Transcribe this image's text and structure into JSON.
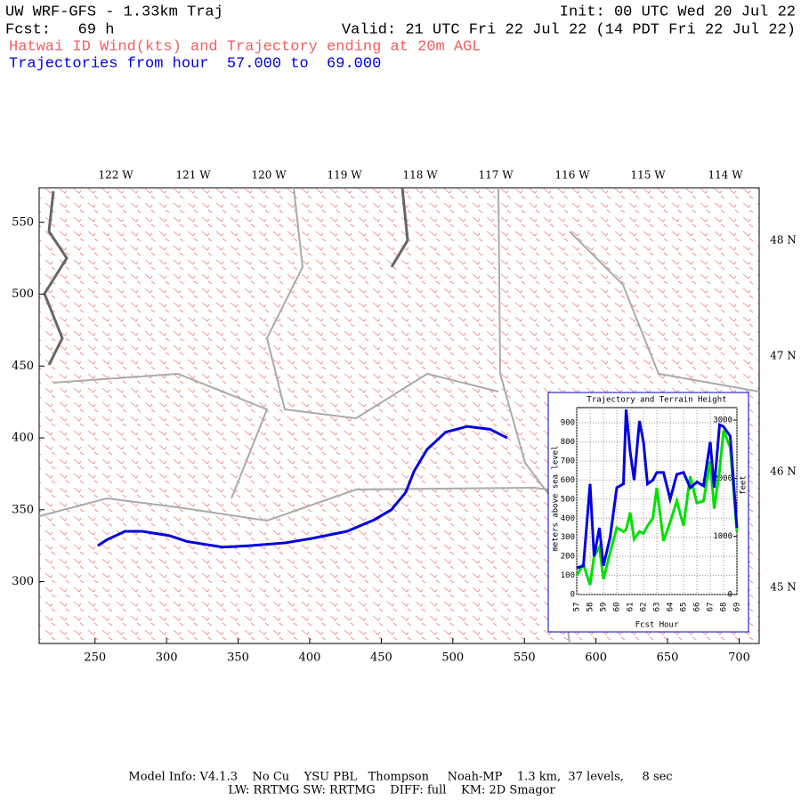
{
  "header": {
    "title": "UW WRF-GFS - 1.33km Traj",
    "init": "Init: 00 UTC Wed 20 Jul 22",
    "fcst": "Fcst:   69 h",
    "valid": "Valid: 21 UTC Fri 22 Jul 22 (14 PDT Fri 22 Jul 22)",
    "subtitle": "Hatwai ID Wind(kts) and Trajectory ending at 20m AGL",
    "trajectory_range": "Trajectories from hour  57.000 to  69.000"
  },
  "map": {
    "xlim": [
      211,
      714
    ],
    "ylim": [
      257,
      574
    ],
    "xticks": [
      250,
      300,
      350,
      400,
      450,
      500,
      550,
      600,
      650,
      700
    ],
    "yticks": [
      300,
      350,
      400,
      450,
      500,
      550
    ],
    "lon_labels": [
      "122 W",
      "121 W",
      "120 W",
      "119 W",
      "118 W",
      "117 W",
      "116 W",
      "115 W",
      "114 W"
    ],
    "lat_labels": [
      "48 N",
      "47 N",
      "46 N",
      "45 N"
    ],
    "trajectory": {
      "color": "#0000e0",
      "x": [
        252,
        258,
        271,
        283,
        302,
        314,
        339,
        358,
        383,
        401,
        426,
        445,
        457,
        467,
        473,
        482,
        495,
        510,
        526,
        538
      ],
      "y": [
        325,
        329,
        335,
        335,
        332,
        328,
        324,
        325,
        327,
        330,
        335,
        343,
        350,
        362,
        377,
        392,
        404,
        408,
        406,
        400
      ]
    }
  },
  "chart_data": {
    "type": "line",
    "title": "Trajectory and Terrain Height",
    "x_label": "Fcst Hour",
    "y_label": "meters above sea level",
    "y2_label": "feet",
    "x": [
      57,
      57.5,
      58,
      58.3,
      58.7,
      59,
      59.5,
      60,
      60.5,
      60.7,
      61,
      61.3,
      61.7,
      62,
      62.3,
      62.7,
      63,
      63.5,
      64,
      64.5,
      65,
      65.5,
      66,
      66.5,
      67,
      67.3,
      67.7,
      68,
      68.5,
      69
    ],
    "xlim": [
      57,
      69
    ],
    "xticks": [
      57,
      58,
      59,
      60,
      61,
      62,
      63,
      64,
      65,
      66,
      67,
      68,
      69
    ],
    "ylim": [
      0,
      980
    ],
    "yticks": [
      0,
      100,
      200,
      300,
      400,
      500,
      600,
      700,
      800,
      900
    ],
    "y2lim": [
      0,
      3215
    ],
    "y2ticks": [
      0,
      1000,
      2000,
      3000
    ],
    "grid": true,
    "series": [
      {
        "name": "Trajectory",
        "color": "#0000e0",
        "values": [
          140,
          150,
          580,
          200,
          350,
          150,
          300,
          560,
          580,
          970,
          750,
          600,
          910,
          800,
          580,
          600,
          640,
          640,
          500,
          630,
          640,
          560,
          590,
          570,
          800,
          560,
          890,
          880,
          830,
          350
        ]
      },
      {
        "name": "Terrain",
        "color": "#00e000",
        "values": [
          100,
          160,
          50,
          200,
          250,
          80,
          220,
          350,
          330,
          340,
          430,
          290,
          330,
          320,
          360,
          400,
          560,
          280,
          380,
          490,
          360,
          620,
          480,
          490,
          700,
          450,
          650,
          860,
          770,
          330
        ]
      }
    ]
  },
  "footer": {
    "line1": "Model Info: V4.1.3    No Cu    YSU PBL   Thompson     Noah-MP    1.3 km,  37 levels,     8 sec",
    "line2": "LW: RRTMG SW: RRTMG    DIFF: full    KM: 2D Smagor"
  }
}
